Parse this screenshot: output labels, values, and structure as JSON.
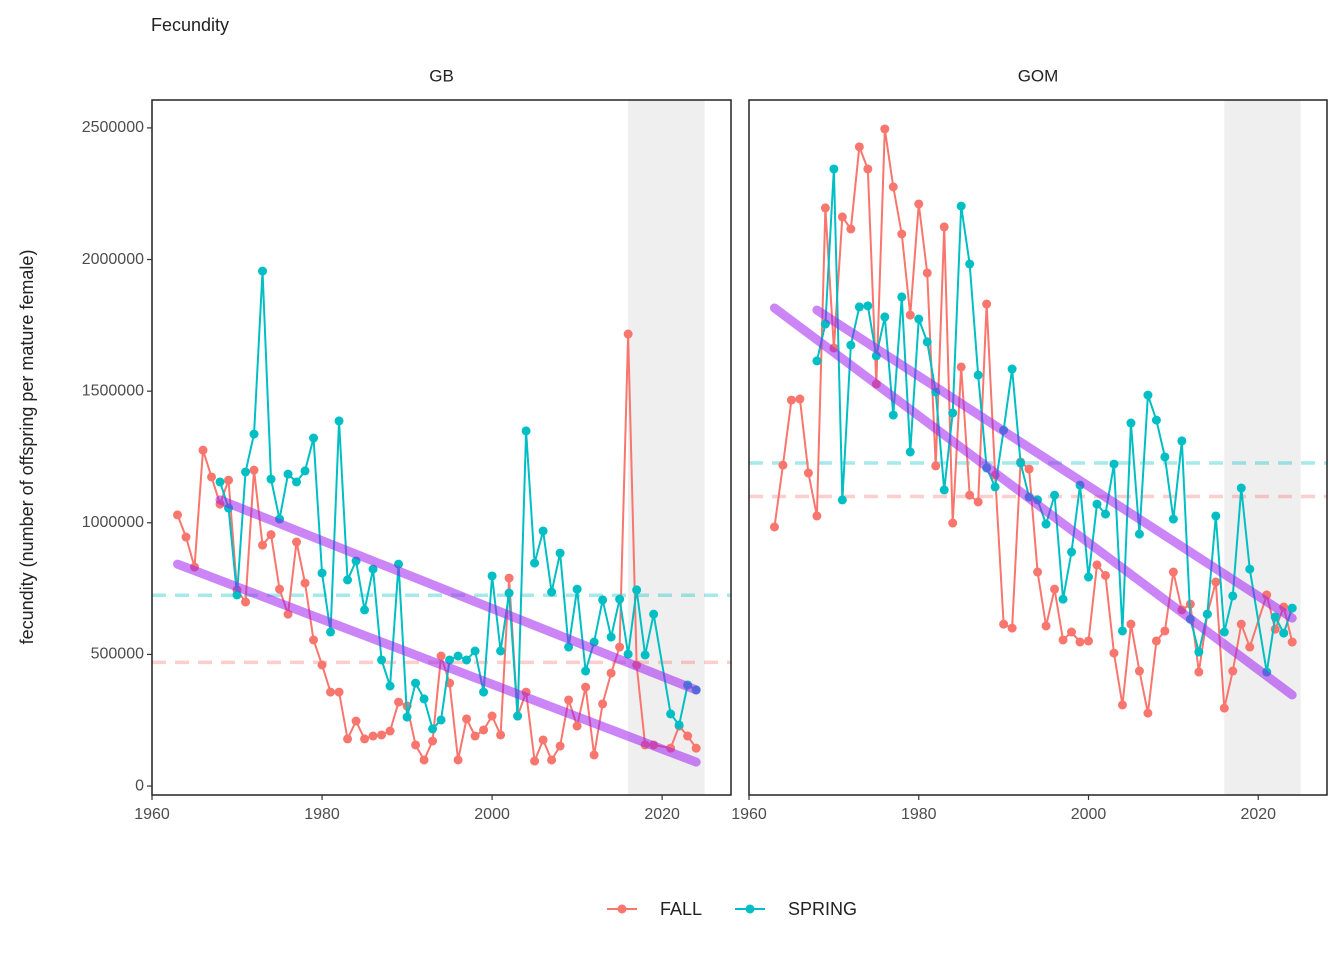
{
  "chart_data": {
    "type": "line",
    "title": "Fecundity",
    "y_label": "fecundity (number of offspring per mature female)",
    "xlim": [
      1960,
      2028.1
    ],
    "ylim": [
      -34000,
      2606000
    ],
    "xticks": [
      1960,
      1980,
      2000,
      2020
    ],
    "yticks": [
      0,
      500000,
      1000000,
      1500000,
      2000000,
      2500000
    ],
    "shade": [
      2016,
      2025
    ],
    "shade_color": "#efefef",
    "trend_color": "#a020f0",
    "groups": [
      {
        "name": "FALL",
        "color": "#F8766D"
      },
      {
        "name": "SPRING",
        "color": "#00BFC4"
      }
    ],
    "panels": [
      {
        "title": "GB",
        "series": [
          {
            "x": [
              1963,
              1964,
              1965,
              1966,
              1967,
              1968,
              1969,
              1970,
              1971,
              1972,
              1973,
              1974,
              1975,
              1976,
              1977,
              1978,
              1979,
              1980,
              1981,
              1982,
              1983,
              1984,
              1985,
              1986,
              1987,
              1988,
              1989,
              1990,
              1991,
              1992,
              1993,
              1994,
              1995,
              1996,
              1997,
              1998,
              1999,
              2000,
              2001,
              2002,
              2003,
              2004,
              2005,
              2006,
              2007,
              2008,
              2009,
              2010,
              2011,
              2012,
              2013,
              2014,
              2015,
              2016,
              2017,
              2018,
              2019,
              2021,
              2022,
              2023,
              2024
            ],
            "values": [
              1030000,
              946000,
              832000,
              1276000,
              1174000,
              1071000,
              1162000,
              745000,
              699000,
              1200000,
              915000,
              955000,
              748000,
              653000,
              927000,
              771000,
              555000,
              460000,
              357000,
              357000,
              179000,
              247000,
              179000,
              190000,
              194000,
              209000,
              319000,
              304000,
              156000,
              99000,
              171000,
              494000,
              391000,
              99000,
              255000,
              190000,
              213000,
              266000,
              194000,
              790000,
              266000,
              357000,
              95000,
              175000,
              99000,
              152000,
              327000,
              228000,
              376000,
              118000,
              312000,
              429000,
              528000,
              1717000,
              460000,
              156000,
              156000,
              144000,
              228000,
              190000,
              144000
            ],
            "mean": 470000,
            "trend_x": [
              1963,
              2024
            ],
            "trend": [
              843000,
              91000
            ]
          },
          {
            "x": [
              1968,
              1969,
              1970,
              1971,
              1972,
              1973,
              1974,
              1975,
              1976,
              1977,
              1978,
              1979,
              1980,
              1981,
              1982,
              1983,
              1984,
              1985,
              1986,
              1987,
              1988,
              1989,
              1990,
              1991,
              1992,
              1993,
              1994,
              1995,
              1996,
              1997,
              1998,
              1999,
              2000,
              2001,
              2002,
              2003,
              2004,
              2005,
              2006,
              2007,
              2008,
              2009,
              2010,
              2011,
              2012,
              2013,
              2014,
              2015,
              2016,
              2017,
              2018,
              2019,
              2021,
              2022,
              2023,
              2024
            ],
            "values": [
              1155000,
              1056000,
              726000,
              1193000,
              1337000,
              1956000,
              1166000,
              1014000,
              1185000,
              1155000,
              1197000,
              1322000,
              809000,
              585000,
              1387000,
              783000,
              855000,
              669000,
              824000,
              479000,
              380000,
              843000,
              262000,
              391000,
              331000,
              217000,
              251000,
              479000,
              494000,
              479000,
              513000,
              357000,
              798000,
              513000,
              733000,
              266000,
              1349000,
              847000,
              969000,
              737000,
              885000,
              528000,
              748000,
              437000,
              547000,
              707000,
              566000,
              710000,
              501000,
              745000,
              498000,
              653000,
              274000,
              232000,
              384000,
              365000
            ],
            "mean": 725000,
            "trend_x": [
              1968,
              2024
            ],
            "trend": [
              1087000,
              365000
            ]
          }
        ]
      },
      {
        "title": "GOM",
        "series": [
          {
            "x": [
              1963,
              1964,
              1965,
              1966,
              1967,
              1968,
              1969,
              1970,
              1971,
              1972,
              1973,
              1974,
              1975,
              1976,
              1977,
              1978,
              1979,
              1980,
              1981,
              1982,
              1983,
              1984,
              1985,
              1986,
              1987,
              1988,
              1989,
              1990,
              1991,
              1992,
              1993,
              1994,
              1995,
              1996,
              1997,
              1998,
              1999,
              2000,
              2001,
              2002,
              2003,
              2004,
              2005,
              2006,
              2007,
              2008,
              2009,
              2010,
              2011,
              2012,
              2013,
              2014,
              2015,
              2016,
              2017,
              2018,
              2019,
              2021,
              2022,
              2023,
              2024
            ],
            "values": [
              984000,
              1219000,
              1466000,
              1470000,
              1189000,
              1026000,
              2196000,
              1664000,
              2162000,
              2116000,
              2428000,
              2344000,
              1527000,
              2496000,
              2276000,
              2097000,
              1789000,
              2211000,
              1949000,
              1216000,
              2124000,
              999000,
              1592000,
              1105000,
              1079000,
              1831000,
              1181000,
              615000,
              600000,
              1231000,
              1204000,
              813000,
              608000,
              748000,
              555000,
              585000,
              547000,
              551000,
              840000,
              800000,
              505000,
              308000,
              615000,
              437000,
              277000,
              551000,
              589000,
              813000,
              669000,
              691000,
              433000,
              653000,
              775000,
              296000,
              437000,
              615000,
              528000,
              726000,
              596000,
              680000,
              547000
            ],
            "mean": 1100000,
            "trend_x": [
              1963,
              2024
            ],
            "trend": [
              1816000,
              346000
            ]
          },
          {
            "x": [
              1968,
              1969,
              1970,
              1971,
              1972,
              1973,
              1974,
              1975,
              1976,
              1977,
              1978,
              1979,
              1980,
              1981,
              1982,
              1983,
              1984,
              1985,
              1986,
              1987,
              1988,
              1989,
              1990,
              1991,
              1992,
              1993,
              1994,
              1995,
              1996,
              1997,
              1998,
              1999,
              2000,
              2001,
              2002,
              2003,
              2004,
              2005,
              2006,
              2007,
              2008,
              2009,
              2010,
              2011,
              2012,
              2013,
              2014,
              2015,
              2016,
              2017,
              2018,
              2019,
              2021,
              2022,
              2023,
              2024
            ],
            "values": [
              1615000,
              1755000,
              2344000,
              1087000,
              1675000,
              1820000,
              1824000,
              1634000,
              1782000,
              1409000,
              1858000,
              1269000,
              1774000,
              1687000,
              1497000,
              1125000,
              1417000,
              2203000,
              1983000,
              1561000,
              1208000,
              1136000,
              1352000,
              1584000,
              1227000,
              1098000,
              1087000,
              995000,
              1105000,
              710000,
              889000,
              1143000,
              794000,
              1071000,
              1033000,
              1223000,
              589000,
              1379000,
              957000,
              1485000,
              1390000,
              1250000,
              1014000,
              1311000,
              634000,
              509000,
              653000,
              1026000,
              585000,
              722000,
              1132000,
              824000,
              433000,
              642000,
              581000,
              676000
            ],
            "mean": 1227000,
            "trend_x": [
              1968,
              2024
            ],
            "trend": [
              1808000,
              638000
            ]
          }
        ]
      }
    ]
  }
}
